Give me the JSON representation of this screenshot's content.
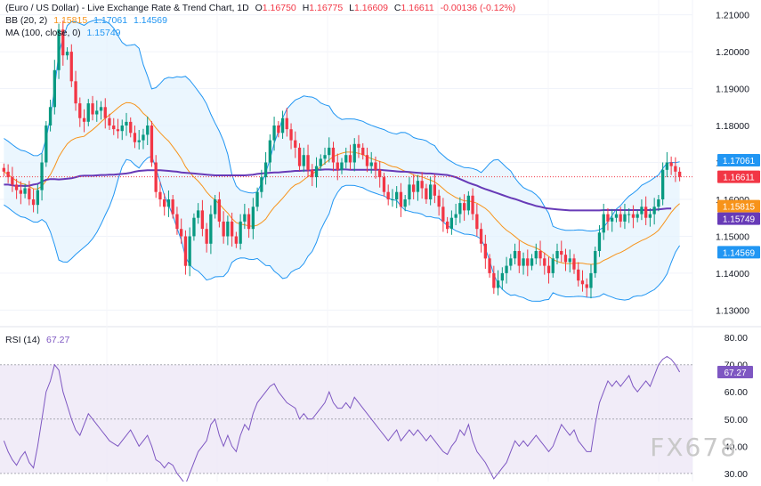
{
  "header": {
    "title": "(Euro / US Dollar) - Live Exchange Rate & Trend Chart, 1D",
    "ohlc": {
      "o_label": "O",
      "o": "1.16750",
      "h_label": "H",
      "h": "1.16775",
      "l_label": "L",
      "l": "1.16609",
      "c_label": "C",
      "c": "1.16611",
      "change": "-0.00136 (-0.12%)"
    },
    "bb": {
      "label": "BB (20, 2)",
      "mid": "1.15815",
      "upper": "1.17061",
      "lower": "1.14569"
    },
    "ma": {
      "label": "MA (100, close, 0)",
      "value": "1.15749"
    }
  },
  "rsi_header": {
    "label": "RSI (14)",
    "value": "67.27"
  },
  "watermark": "FX678",
  "colors": {
    "up": "#089981",
    "down": "#f23645",
    "bb_band": "#2196f3",
    "bb_fill": "#e3f2fd",
    "bb_mid": "#f7931a",
    "ma": "#673ab7",
    "rsi": "#7e57c2",
    "rsi_fill": "#ede7f6"
  },
  "chart_data": [
    {
      "type": "candlestick",
      "yticks": [
        1.13,
        1.14,
        1.15,
        1.16,
        1.17,
        1.18,
        1.19,
        1.2,
        1.21
      ],
      "yticks_label": [
        "1.13000",
        "1.14000",
        "1.15000",
        "1.16000",
        "1.17000",
        "1.18000",
        "1.19000",
        "1.20000",
        "1.21000"
      ],
      "ylim": [
        1.126,
        1.214
      ],
      "last_close": 1.16611,
      "price_labels": [
        {
          "value": 1.17061,
          "text": "1.17061",
          "color": "#2196f3"
        },
        {
          "value": 1.16611,
          "text": "1.16611",
          "color": "#f23645"
        },
        {
          "value": 1.15815,
          "text": "1.15815",
          "color": "#f7931a"
        },
        {
          "value": 1.15749,
          "text": "1.15749",
          "color": "#673ab7"
        },
        {
          "value": 1.14569,
          "text": "1.14569",
          "color": "#2196f3"
        }
      ],
      "close": [
        1.1675,
        1.166,
        1.164,
        1.1625,
        1.1615,
        1.163,
        1.16,
        1.1585,
        1.1625,
        1.17,
        1.18,
        1.185,
        1.195,
        1.206,
        1.199,
        1.2,
        1.192,
        1.186,
        1.182,
        1.181,
        1.186,
        1.183,
        1.184,
        1.185,
        1.182,
        1.18,
        1.179,
        1.1785,
        1.18,
        1.181,
        1.178,
        1.1755,
        1.176,
        1.1775,
        1.18,
        1.17,
        1.162,
        1.16,
        1.158,
        1.16,
        1.156,
        1.152,
        1.15,
        1.142,
        1.15,
        1.155,
        1.157,
        1.152,
        1.148,
        1.156,
        1.16,
        1.154,
        1.15,
        1.154,
        1.15,
        1.148,
        1.154,
        1.156,
        1.152,
        1.158,
        1.162,
        1.166,
        1.17,
        1.176,
        1.18,
        1.178,
        1.182,
        1.179,
        1.176,
        1.174,
        1.169,
        1.172,
        1.168,
        1.166,
        1.169,
        1.171,
        1.172,
        1.174,
        1.17,
        1.168,
        1.17,
        1.172,
        1.17,
        1.175,
        1.174,
        1.172,
        1.169,
        1.17,
        1.168,
        1.166,
        1.162,
        1.16,
        1.16,
        1.162,
        1.158,
        1.16,
        1.164,
        1.162,
        1.165,
        1.163,
        1.16,
        1.164,
        1.161,
        1.158,
        1.154,
        1.152,
        1.155,
        1.156,
        1.159,
        1.157,
        1.161,
        1.156,
        1.152,
        1.148,
        1.144,
        1.14,
        1.136,
        1.138,
        1.14,
        1.142,
        1.144,
        1.146,
        1.142,
        1.144,
        1.142,
        1.144,
        1.146,
        1.144,
        1.142,
        1.14,
        1.144,
        1.146,
        1.145,
        1.143,
        1.144,
        1.141,
        1.138,
        1.137,
        1.136,
        1.14,
        1.146,
        1.151,
        1.156,
        1.154,
        1.155,
        1.156,
        1.154,
        1.156,
        1.156,
        1.155,
        1.156,
        1.158,
        1.155,
        1.156,
        1.158,
        1.16,
        1.168,
        1.17,
        1.169,
        1.1675,
        1.1661
      ],
      "ma100": [
        1.164,
        1.164,
        1.1638,
        1.1636,
        1.1637,
        1.1636,
        1.1637,
        1.164,
        1.1642,
        1.1648,
        1.1653,
        1.1655,
        1.1655,
        1.1654,
        1.1655,
        1.1656,
        1.1657,
        1.166,
        1.1663,
        1.1664,
        1.1664,
        1.1664,
        1.1665,
        1.1666,
        1.1666,
        1.1667,
        1.1667,
        1.1668,
        1.1669,
        1.167,
        1.1672,
        1.1675,
        1.1677,
        1.1678,
        1.1679,
        1.1679,
        1.1679,
        1.1679,
        1.1678,
        1.1677,
        1.1676,
        1.1675,
        1.1673,
        1.1672,
        1.1671,
        1.167,
        1.1669,
        1.1668,
        1.1667,
        1.1666,
        1.1665,
        1.1665,
        1.1665,
        1.1665,
        1.1665,
        1.1665,
        1.1665,
        1.1665,
        1.1666,
        1.1667,
        1.1669,
        1.167,
        1.1671,
        1.1672,
        1.1673,
        1.1673,
        1.1674,
        1.1675,
        1.1676,
        1.1677,
        1.1677,
        1.1678,
        1.1678,
        1.1679,
        1.168,
        1.168,
        1.1681,
        1.1681,
        1.168,
        1.168,
        1.1681,
        1.1681,
        1.168,
        1.168,
        1.168,
        1.168,
        1.168,
        1.168,
        1.168,
        1.168,
        1.1679,
        1.1678,
        1.1677,
        1.1676,
        1.1675,
        1.1675,
        1.1674,
        1.1673,
        1.1672,
        1.1671,
        1.167,
        1.167,
        1.1669,
        1.1668,
        1.1667,
        1.1666,
        1.1663,
        1.166,
        1.1655,
        1.165,
        1.1645,
        1.1641,
        1.1637,
        1.1632,
        1.1628,
        1.1624,
        1.162,
        1.1616,
        1.1612,
        1.1608,
        1.1604,
        1.1601,
        1.1597,
        1.1593,
        1.1589,
        1.1586,
        1.1582,
        1.158,
        1.1577,
        1.1575,
        1.1574,
        1.1573,
        1.1572,
        1.1571,
        1.157,
        1.157,
        1.157,
        1.157,
        1.157,
        1.157,
        1.157,
        1.157,
        1.1571,
        1.1571,
        1.1571,
        1.1571,
        1.1571,
        1.1571,
        1.1571,
        1.1571,
        1.1571,
        1.1571,
        1.1571,
        1.1571,
        1.1572,
        1.1573,
        1.1574,
        1.1575,
        1.1575
      ]
    },
    {
      "type": "line",
      "title": "RSI (14)",
      "yticks": [
        30,
        40,
        50,
        60,
        70,
        80
      ],
      "yticks_label": [
        "30.00",
        "40.00",
        "50.00",
        "60.00",
        "70.00",
        "80.00"
      ],
      "ylim": [
        27,
        83
      ],
      "bands": [
        30,
        50,
        70
      ],
      "last_value": 67.27,
      "values": [
        42,
        38,
        35,
        33,
        36,
        38,
        34,
        32,
        40,
        50,
        60,
        64,
        70,
        68,
        60,
        55,
        50,
        46,
        44,
        48,
        52,
        50,
        48,
        46,
        44,
        42,
        41,
        40,
        42,
        44,
        46,
        43,
        40,
        42,
        44,
        40,
        35,
        34,
        32,
        34,
        33,
        30,
        28,
        26,
        30,
        34,
        38,
        40,
        42,
        48,
        50,
        44,
        40,
        44,
        40,
        38,
        44,
        48,
        46,
        52,
        56,
        58,
        60,
        62,
        63,
        60,
        58,
        56,
        55,
        54,
        50,
        52,
        50,
        50,
        52,
        54,
        56,
        60,
        56,
        54,
        54,
        56,
        54,
        58,
        56,
        54,
        52,
        50,
        48,
        46,
        44,
        42,
        44,
        46,
        42,
        44,
        46,
        44,
        46,
        44,
        42,
        44,
        42,
        40,
        38,
        37,
        40,
        42,
        46,
        44,
        48,
        42,
        38,
        36,
        34,
        31,
        28,
        30,
        32,
        34,
        38,
        42,
        40,
        42,
        40,
        42,
        44,
        42,
        40,
        38,
        40,
        44,
        48,
        46,
        44,
        46,
        42,
        40,
        38,
        38,
        48,
        56,
        60,
        64,
        62,
        64,
        62,
        64,
        66,
        62,
        60,
        62,
        64,
        62,
        66,
        70,
        72,
        73,
        72,
        70,
        67.27
      ]
    }
  ]
}
